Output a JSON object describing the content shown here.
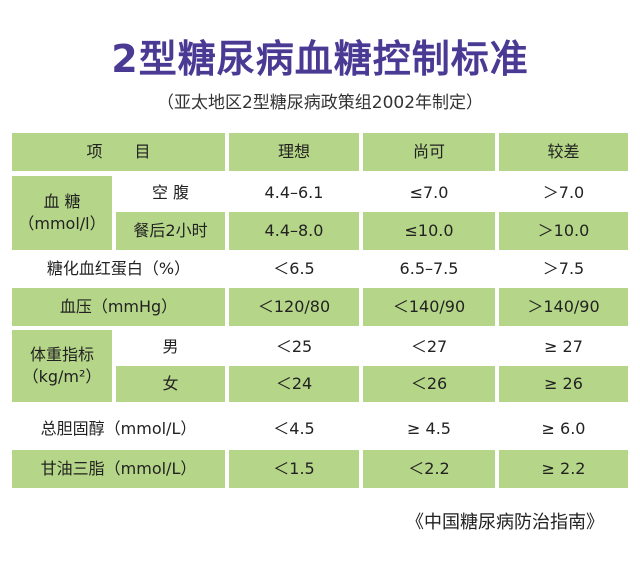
{
  "title": "2型糖尿病血糖控制标准",
  "subtitle": "（亚太地区2型糖尿病政策组2002年制定）",
  "header": {
    "item": "项　　目",
    "ideal": "理想",
    "acceptable": "尚可",
    "poor": "较差"
  },
  "rows": {
    "blood_glucose": {
      "group_label": "血 糖\n（mmol/l）",
      "fasting": {
        "label": "空 腹",
        "ideal": "4.4–6.1",
        "acceptable": "≤7.0",
        "poor": "＞7.0"
      },
      "postprandial": {
        "label": "餐后2小时",
        "ideal": "4.4–8.0",
        "acceptable": "≤10.0",
        "poor": "＞10.0"
      }
    },
    "hba1c": {
      "label": "糖化血红蛋白（%）",
      "ideal": "＜6.5",
      "acceptable": "6.5–7.5",
      "poor": "＞7.5"
    },
    "blood_pressure": {
      "label": "血压（mmHg）",
      "ideal": "＜120/80",
      "acceptable": "＜140/90",
      "poor": "＞140/90"
    },
    "bmi": {
      "group_label": "体重指标\n（kg/m²）",
      "male": {
        "label": "男",
        "ideal": "＜25",
        "acceptable": "＜27",
        "poor": "≥ 27"
      },
      "female": {
        "label": "女",
        "ideal": "＜24",
        "acceptable": "＜26",
        "poor": "≥ 26"
      }
    },
    "cholesterol": {
      "label": "总胆固醇（mmol/L）",
      "ideal": "＜4.5",
      "acceptable": "≥ 4.5",
      "poor": "≥ 6.0"
    },
    "triglyceride": {
      "label": "甘油三脂（mmol/L）",
      "ideal": "＜1.5",
      "acceptable": "＜2.2",
      "poor": "≥ 2.2"
    }
  },
  "source": "《中国糖尿病防治指南》",
  "colors": {
    "title": "#4a3a94",
    "row_green": "#b5d688"
  }
}
